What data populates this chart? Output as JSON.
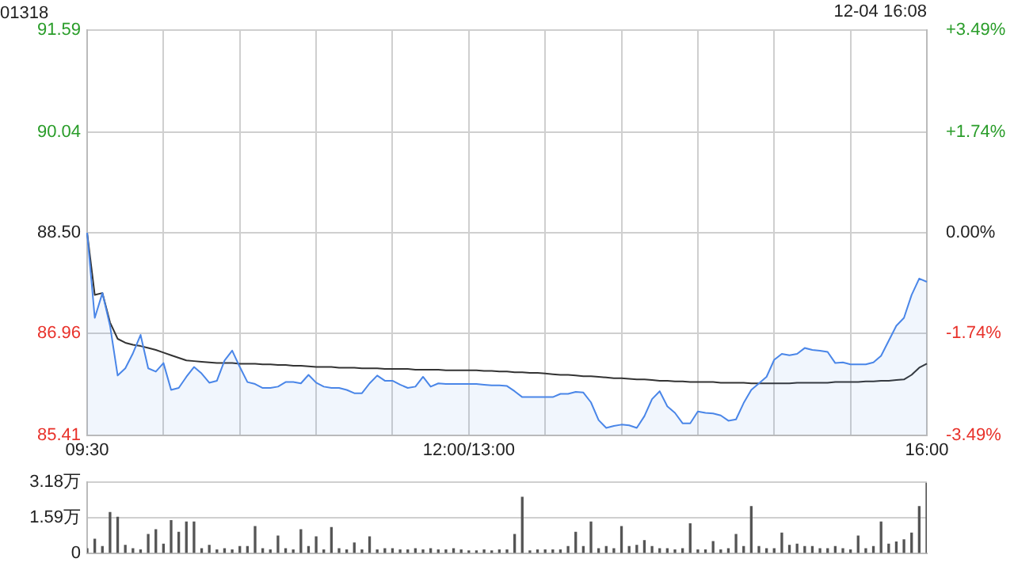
{
  "chart_data": [
    {
      "type": "line",
      "title": "01318",
      "annotations": [
        "12-04 16:08"
      ],
      "marker": "none",
      "grid": true,
      "categories": [
        "09:30",
        null,
        null,
        null,
        null,
        null,
        null,
        null,
        null,
        null,
        null,
        null,
        null,
        null,
        null,
        null,
        null,
        null,
        null,
        null,
        null,
        null,
        null,
        null,
        null,
        null,
        null,
        null,
        null,
        null,
        null,
        null,
        null,
        null,
        null,
        null,
        null,
        null,
        null,
        null,
        null,
        null,
        null,
        null,
        null,
        null,
        null,
        null,
        null,
        null,
        "12:00/13:00",
        null,
        null,
        null,
        null,
        null,
        null,
        null,
        null,
        null,
        null,
        null,
        null,
        null,
        null,
        null,
        null,
        null,
        null,
        null,
        null,
        null,
        null,
        null,
        null,
        null,
        null,
        null,
        null,
        null,
        null,
        null,
        null,
        null,
        null,
        null,
        null,
        null,
        null,
        null,
        null,
        null,
        null,
        null,
        null,
        null,
        null,
        null,
        null,
        null,
        null,
        null,
        null,
        null,
        null,
        null,
        null,
        null,
        null,
        null,
        "16:00"
      ],
      "series": [
        {
          "type": "area",
          "color": "#4a86e8",
          "values": [
            88.5,
            87.2,
            87.58,
            87.08,
            86.32,
            86.43,
            86.66,
            86.94,
            86.43,
            86.38,
            86.51,
            86.1,
            86.13,
            86.3,
            86.45,
            86.35,
            86.21,
            86.24,
            86.55,
            86.7,
            86.45,
            86.22,
            86.19,
            86.13,
            86.13,
            86.15,
            86.22,
            86.22,
            86.2,
            86.33,
            86.21,
            86.15,
            86.13,
            86.13,
            86.1,
            86.05,
            86.05,
            86.2,
            86.32,
            86.24,
            86.24,
            86.18,
            86.13,
            86.15,
            86.3,
            86.15,
            86.2,
            86.19,
            86.19,
            86.19,
            86.19,
            86.19,
            86.18,
            86.17,
            86.17,
            86.16,
            86.08,
            85.99,
            85.99,
            85.99,
            85.99,
            85.99,
            86.04,
            86.04,
            86.07,
            86.06,
            85.91,
            85.64,
            85.52,
            85.55,
            85.57,
            85.56,
            85.52,
            85.7,
            85.96,
            86.08,
            85.85,
            85.75,
            85.59,
            85.59,
            85.77,
            85.75,
            85.74,
            85.71,
            85.63,
            85.65,
            85.9,
            86.1,
            86.2,
            86.3,
            86.56,
            86.65,
            86.63,
            86.65,
            86.74,
            86.71,
            86.7,
            86.68,
            86.51,
            86.52,
            86.49,
            86.49,
            86.49,
            86.52,
            86.62,
            86.85,
            87.08,
            87.2,
            87.55,
            87.8,
            87.75
          ]
        },
        {
          "type": "line",
          "color": "#333333",
          "values": [
            88.5,
            87.55,
            87.58,
            87.13,
            86.88,
            86.82,
            86.79,
            86.77,
            86.74,
            86.71,
            86.67,
            86.63,
            86.59,
            86.55,
            86.54,
            86.53,
            86.52,
            86.51,
            86.51,
            86.51,
            86.5,
            86.5,
            86.5,
            86.49,
            86.49,
            86.48,
            86.48,
            86.47,
            86.47,
            86.46,
            86.45,
            86.45,
            86.45,
            86.44,
            86.44,
            86.44,
            86.43,
            86.43,
            86.43,
            86.42,
            86.42,
            86.42,
            86.42,
            86.41,
            86.41,
            86.41,
            86.41,
            86.4,
            86.4,
            86.4,
            86.4,
            86.4,
            86.39,
            86.39,
            86.38,
            86.38,
            86.37,
            86.37,
            86.36,
            86.36,
            86.35,
            86.34,
            86.33,
            86.33,
            86.32,
            86.31,
            86.31,
            86.3,
            86.29,
            86.28,
            86.28,
            86.27,
            86.26,
            86.26,
            86.25,
            86.24,
            86.24,
            86.23,
            86.23,
            86.22,
            86.22,
            86.22,
            86.22,
            86.21,
            86.21,
            86.21,
            86.21,
            86.2,
            86.2,
            86.2,
            86.2,
            86.2,
            86.2,
            86.21,
            86.21,
            86.21,
            86.21,
            86.21,
            86.22,
            86.22,
            86.22,
            86.22,
            86.23,
            86.23,
            86.24,
            86.24,
            86.25,
            86.26,
            86.33,
            86.44,
            86.5
          ]
        }
      ],
      "ylim": [
        85.41,
        91.59
      ],
      "yticks": [
        85.41,
        86.96,
        {
          "value": 88.5,
          "label": "88.50"
        },
        90.04,
        91.59
      ],
      "y2lim": [
        -3.49,
        3.49
      ],
      "y2ticks": [
        {
          "value": -3.49,
          "label": "-3.49%"
        },
        {
          "value": -1.74,
          "label": "-1.74%"
        },
        {
          "value": 0,
          "label": "0.00%"
        },
        {
          "value": 1.74,
          "label": "+1.74%"
        },
        {
          "value": 3.49,
          "label": "+3.49%"
        }
      ]
    },
    {
      "type": "bar",
      "color": "#555555",
      "grid": "y",
      "tick_labels": "y",
      "categories": [
        null,
        null,
        null,
        null,
        null,
        null,
        null,
        null,
        null,
        null,
        null,
        null,
        null,
        null,
        null,
        null,
        null,
        null,
        null,
        null,
        null,
        null,
        null,
        null,
        null,
        null,
        null,
        null,
        null,
        null,
        null,
        null,
        null,
        null,
        null,
        null,
        null,
        null,
        null,
        null,
        null,
        null,
        null,
        null,
        null,
        null,
        null,
        null,
        null,
        null,
        null,
        null,
        null,
        null,
        null,
        null,
        null,
        null,
        null,
        null,
        null,
        null,
        null,
        null,
        null,
        null,
        null,
        null,
        null,
        null,
        null,
        null,
        null,
        null,
        null,
        null,
        null,
        null,
        null,
        null,
        null,
        null,
        null,
        null,
        null,
        null,
        null,
        null,
        null,
        null,
        null,
        null,
        null,
        null,
        null,
        null,
        null,
        null,
        null,
        null,
        null,
        null,
        null,
        null,
        null,
        null,
        null,
        null,
        null,
        null,
        null
      ],
      "ylim": [
        0,
        3.18
      ],
      "yticks": [
        0,
        {
          "value": 1.59,
          "label": "1.59万"
        },
        {
          "value": 3.18,
          "label": "3.18万"
        }
      ],
      "values": [
        0.2,
        0.63,
        0.3,
        1.82,
        1.61,
        0.35,
        0.2,
        0.15,
        0.84,
        1.05,
        0.4,
        1.46,
        0.94,
        1.4,
        1.4,
        0.2,
        0.35,
        0.15,
        0.2,
        0.15,
        0.3,
        0.3,
        1.19,
        0.2,
        0.15,
        0.77,
        0.2,
        0.15,
        1.05,
        0.3,
        0.73,
        0.15,
        1.15,
        0.2,
        0.15,
        0.46,
        0.15,
        0.73,
        0.15,
        0.2,
        0.2,
        0.15,
        0.15,
        0.2,
        0.15,
        0.2,
        0.15,
        0.15,
        0.2,
        0.15,
        0.1,
        0.1,
        0.15,
        0.1,
        0.15,
        0.15,
        0.84,
        2.51,
        0.1,
        0.15,
        0.15,
        0.15,
        0.15,
        0.3,
        0.94,
        0.3,
        1.4,
        0.2,
        0.3,
        0.2,
        1.19,
        0.3,
        0.35,
        0.56,
        0.3,
        0.2,
        0.2,
        0.15,
        0.2,
        1.32,
        0.15,
        0.15,
        0.52,
        0.15,
        0.2,
        0.84,
        0.3,
        2.09,
        0.3,
        0.2,
        0.2,
        0.9,
        0.35,
        0.4,
        0.3,
        0.3,
        0.2,
        0.2,
        0.3,
        0.2,
        0.15,
        0.77,
        0.2,
        0.3,
        1.4,
        0.4,
        0.5,
        0.6,
        0.9,
        2.09,
        3.14
      ]
    }
  ]
}
